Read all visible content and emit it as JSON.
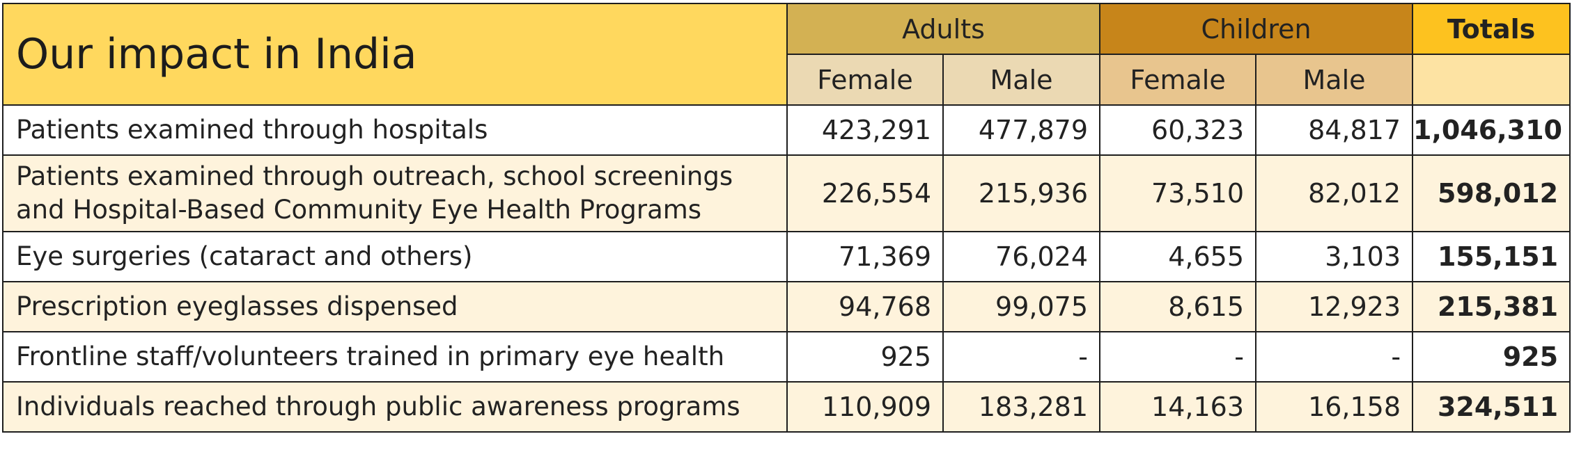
{
  "title": "Our impact in India",
  "groups": {
    "adults": "Adults",
    "children": "Children",
    "totals": "Totals"
  },
  "subheaders": {
    "adults_female": "Female",
    "adults_male": "Male",
    "children_female": "Female",
    "children_male": "Male",
    "totals": ""
  },
  "rows": [
    {
      "label": "Patients examined through hospitals",
      "adults_female": "423,291",
      "adults_male": "477,879",
      "children_female": "60,323",
      "children_male": "84,817",
      "total": "1,046,310"
    },
    {
      "label": "Patients examined through outreach, school screenings and Hospital-Based Community Eye Health Programs",
      "adults_female": "226,554",
      "adults_male": "215,936",
      "children_female": "73,510",
      "children_male": "82,012",
      "total": "598,012"
    },
    {
      "label": "Eye surgeries (cataract and others)",
      "adults_female": "71,369",
      "adults_male": "76,024",
      "children_female": "4,655",
      "children_male": "3,103",
      "total": "155,151"
    },
    {
      "label": "Prescription eyeglasses dispensed",
      "adults_female": "94,768",
      "adults_male": "99,075",
      "children_female": "8,615",
      "children_male": "12,923",
      "total": "215,381"
    },
    {
      "label": "Frontline staff/volunteers trained in primary eye health",
      "adults_female": "925",
      "adults_male": "-",
      "children_female": "-",
      "children_male": "-",
      "total": "925"
    },
    {
      "label": "Individuals reached through public awareness programs",
      "adults_female": "110,909",
      "adults_male": "183,281",
      "children_female": "14,163",
      "children_male": "16,158",
      "total": "324,511"
    }
  ],
  "colors": {
    "title_bg": "#ffd85e",
    "adults_header": "#d3b153",
    "children_header": "#c7851a",
    "totals_header": "#fdc21f",
    "adults_subheader": "#ebd9b3",
    "children_subheader": "#e8c58e",
    "totals_subheader": "#fde3a3",
    "row_alt": "#fef3dc",
    "border": "#1e1e1e"
  }
}
